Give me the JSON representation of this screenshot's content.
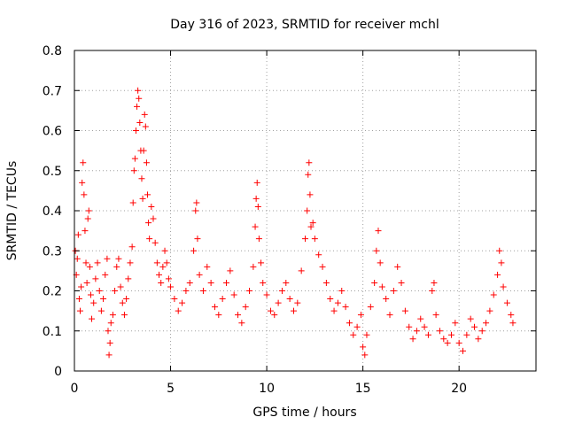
{
  "chart_data": {
    "type": "scatter",
    "title": "Day 316 of 2023, SRMTID for receiver mchl",
    "xlabel": "GPS time / hours",
    "ylabel": "SRMTID / TECUs",
    "xlim": [
      0,
      24
    ],
    "ylim": [
      0,
      0.8
    ],
    "xticks": [
      0,
      5,
      10,
      15,
      20
    ],
    "xtick_labels": [
      "0",
      "5",
      "10",
      "15",
      "20"
    ],
    "yticks": [
      0,
      0.1,
      0.2,
      0.3,
      0.4,
      0.5,
      0.6,
      0.7,
      0.8
    ],
    "ytick_labels": [
      "0",
      "0.1",
      "0.2",
      "0.3",
      "0.4",
      "0.5",
      "0.6",
      "0.7",
      "0.8"
    ],
    "grid": true,
    "marker": "+",
    "series": [
      {
        "name": "mchl",
        "color": "#ff0000",
        "points": [
          [
            0.05,
            0.3
          ],
          [
            0.1,
            0.24
          ],
          [
            0.15,
            0.28
          ],
          [
            0.2,
            0.34
          ],
          [
            0.25,
            0.18
          ],
          [
            0.3,
            0.15
          ],
          [
            0.35,
            0.21
          ],
          [
            0.4,
            0.47
          ],
          [
            0.45,
            0.52
          ],
          [
            0.5,
            0.44
          ],
          [
            0.55,
            0.35
          ],
          [
            0.6,
            0.27
          ],
          [
            0.65,
            0.22
          ],
          [
            0.7,
            0.38
          ],
          [
            0.75,
            0.4
          ],
          [
            0.8,
            0.26
          ],
          [
            0.85,
            0.19
          ],
          [
            0.9,
            0.13
          ],
          [
            1.0,
            0.17
          ],
          [
            1.1,
            0.23
          ],
          [
            1.2,
            0.27
          ],
          [
            1.3,
            0.2
          ],
          [
            1.4,
            0.15
          ],
          [
            1.5,
            0.18
          ],
          [
            1.6,
            0.24
          ],
          [
            1.7,
            0.28
          ],
          [
            1.75,
            0.1
          ],
          [
            1.8,
            0.04
          ],
          [
            1.85,
            0.07
          ],
          [
            1.9,
            0.12
          ],
          [
            2.0,
            0.14
          ],
          [
            2.1,
            0.2
          ],
          [
            2.2,
            0.26
          ],
          [
            2.3,
            0.28
          ],
          [
            2.4,
            0.21
          ],
          [
            2.5,
            0.17
          ],
          [
            2.6,
            0.14
          ],
          [
            2.7,
            0.18
          ],
          [
            2.8,
            0.23
          ],
          [
            2.9,
            0.27
          ],
          [
            3.0,
            0.31
          ],
          [
            3.05,
            0.42
          ],
          [
            3.1,
            0.5
          ],
          [
            3.15,
            0.53
          ],
          [
            3.2,
            0.6
          ],
          [
            3.25,
            0.66
          ],
          [
            3.3,
            0.7
          ],
          [
            3.35,
            0.68
          ],
          [
            3.4,
            0.62
          ],
          [
            3.45,
            0.55
          ],
          [
            3.5,
            0.48
          ],
          [
            3.55,
            0.43
          ],
          [
            3.6,
            0.55
          ],
          [
            3.65,
            0.64
          ],
          [
            3.7,
            0.61
          ],
          [
            3.75,
            0.52
          ],
          [
            3.8,
            0.44
          ],
          [
            3.85,
            0.37
          ],
          [
            3.9,
            0.33
          ],
          [
            4.0,
            0.41
          ],
          [
            4.1,
            0.38
          ],
          [
            4.2,
            0.32
          ],
          [
            4.3,
            0.27
          ],
          [
            4.4,
            0.24
          ],
          [
            4.5,
            0.22
          ],
          [
            4.6,
            0.26
          ],
          [
            4.7,
            0.3
          ],
          [
            4.8,
            0.27
          ],
          [
            4.9,
            0.23
          ],
          [
            5.0,
            0.21
          ],
          [
            5.2,
            0.18
          ],
          [
            5.4,
            0.15
          ],
          [
            5.6,
            0.17
          ],
          [
            5.8,
            0.2
          ],
          [
            6.0,
            0.22
          ],
          [
            6.2,
            0.3
          ],
          [
            6.3,
            0.4
          ],
          [
            6.35,
            0.42
          ],
          [
            6.4,
            0.33
          ],
          [
            6.5,
            0.24
          ],
          [
            6.7,
            0.2
          ],
          [
            6.9,
            0.26
          ],
          [
            7.1,
            0.22
          ],
          [
            7.3,
            0.16
          ],
          [
            7.5,
            0.14
          ],
          [
            7.7,
            0.18
          ],
          [
            7.9,
            0.22
          ],
          [
            8.1,
            0.25
          ],
          [
            8.3,
            0.19
          ],
          [
            8.5,
            0.14
          ],
          [
            8.7,
            0.12
          ],
          [
            8.9,
            0.16
          ],
          [
            9.1,
            0.2
          ],
          [
            9.3,
            0.26
          ],
          [
            9.4,
            0.36
          ],
          [
            9.45,
            0.43
          ],
          [
            9.5,
            0.47
          ],
          [
            9.55,
            0.41
          ],
          [
            9.6,
            0.33
          ],
          [
            9.7,
            0.27
          ],
          [
            9.8,
            0.22
          ],
          [
            10.0,
            0.19
          ],
          [
            10.2,
            0.15
          ],
          [
            10.4,
            0.14
          ],
          [
            10.6,
            0.17
          ],
          [
            10.8,
            0.2
          ],
          [
            11.0,
            0.22
          ],
          [
            11.2,
            0.18
          ],
          [
            11.4,
            0.15
          ],
          [
            11.6,
            0.17
          ],
          [
            11.8,
            0.25
          ],
          [
            12.0,
            0.33
          ],
          [
            12.1,
            0.4
          ],
          [
            12.15,
            0.49
          ],
          [
            12.2,
            0.52
          ],
          [
            12.25,
            0.44
          ],
          [
            12.3,
            0.36
          ],
          [
            12.4,
            0.37
          ],
          [
            12.5,
            0.33
          ],
          [
            12.7,
            0.29
          ],
          [
            12.9,
            0.26
          ],
          [
            13.1,
            0.22
          ],
          [
            13.3,
            0.18
          ],
          [
            13.5,
            0.15
          ],
          [
            13.7,
            0.17
          ],
          [
            13.9,
            0.2
          ],
          [
            14.1,
            0.16
          ],
          [
            14.3,
            0.12
          ],
          [
            14.5,
            0.09
          ],
          [
            14.7,
            0.11
          ],
          [
            14.9,
            0.14
          ],
          [
            15.0,
            0.06
          ],
          [
            15.1,
            0.04
          ],
          [
            15.2,
            0.09
          ],
          [
            15.4,
            0.16
          ],
          [
            15.6,
            0.22
          ],
          [
            15.7,
            0.3
          ],
          [
            15.8,
            0.35
          ],
          [
            15.9,
            0.27
          ],
          [
            16.0,
            0.21
          ],
          [
            16.2,
            0.18
          ],
          [
            16.4,
            0.14
          ],
          [
            16.6,
            0.2
          ],
          [
            16.8,
            0.26
          ],
          [
            17.0,
            0.22
          ],
          [
            17.2,
            0.15
          ],
          [
            17.4,
            0.11
          ],
          [
            17.6,
            0.08
          ],
          [
            17.8,
            0.1
          ],
          [
            18.0,
            0.13
          ],
          [
            18.2,
            0.11
          ],
          [
            18.4,
            0.09
          ],
          [
            18.6,
            0.2
          ],
          [
            18.7,
            0.22
          ],
          [
            18.8,
            0.14
          ],
          [
            19.0,
            0.1
          ],
          [
            19.2,
            0.08
          ],
          [
            19.4,
            0.07
          ],
          [
            19.6,
            0.09
          ],
          [
            19.8,
            0.12
          ],
          [
            20.0,
            0.07
          ],
          [
            20.2,
            0.05
          ],
          [
            20.4,
            0.09
          ],
          [
            20.6,
            0.13
          ],
          [
            20.8,
            0.11
          ],
          [
            21.0,
            0.08
          ],
          [
            21.2,
            0.1
          ],
          [
            21.4,
            0.12
          ],
          [
            21.6,
            0.15
          ],
          [
            21.8,
            0.19
          ],
          [
            22.0,
            0.24
          ],
          [
            22.1,
            0.3
          ],
          [
            22.2,
            0.27
          ],
          [
            22.3,
            0.21
          ],
          [
            22.5,
            0.17
          ],
          [
            22.7,
            0.14
          ],
          [
            22.8,
            0.12
          ]
        ]
      }
    ]
  }
}
